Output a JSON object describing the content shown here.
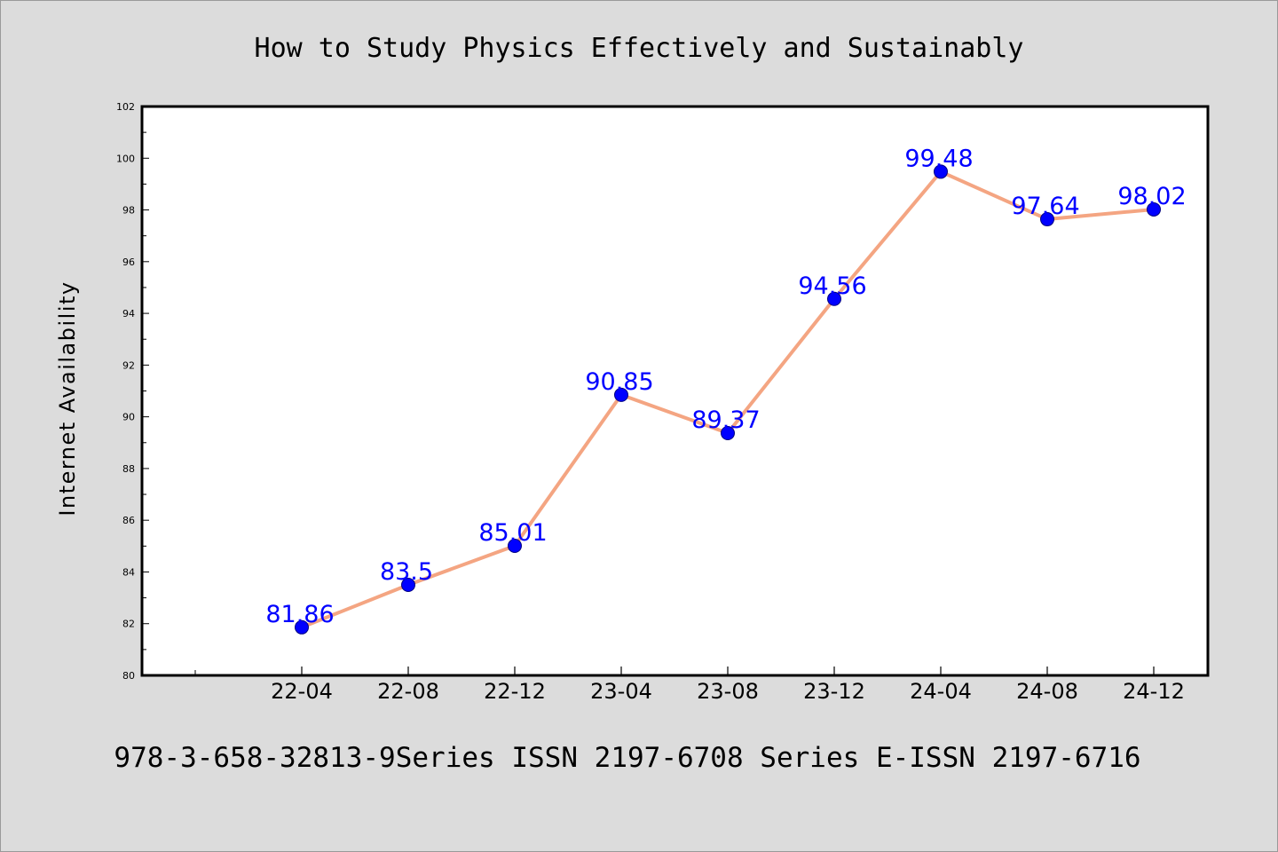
{
  "colors": {
    "background": "#dcdcdc",
    "plot_background": "#ffffff",
    "line": "#f4a582",
    "marker": "#0000ff",
    "data_label": "#0000ff"
  },
  "footer": "978-3-658-32813-9Series ISSN 2197-6708 Series E-ISSN 2197-6716",
  "chart_data": {
    "type": "line",
    "title": "How to Study Physics Effectively and Sustainably",
    "xlabel": "",
    "ylabel": "Internet Availability",
    "categories": [
      "22-04",
      "22-08",
      "22-12",
      "23-04",
      "23-08",
      "23-12",
      "24-04",
      "24-08",
      "24-12"
    ],
    "values": [
      81.86,
      83.5,
      85.01,
      90.85,
      89.37,
      94.56,
      99.48,
      97.64,
      98.02
    ],
    "data_labels": [
      "81.86",
      "83.5",
      "85.01",
      "90.85",
      "89.37",
      "94.56",
      "99.48",
      "97.64",
      "98.02"
    ],
    "ylim": [
      80,
      102
    ],
    "yticks": [
      "80",
      "82",
      "84",
      "86",
      "88",
      "90",
      "92",
      "94",
      "96",
      "98",
      "100",
      "102"
    ],
    "grid": false,
    "legend": "none"
  }
}
